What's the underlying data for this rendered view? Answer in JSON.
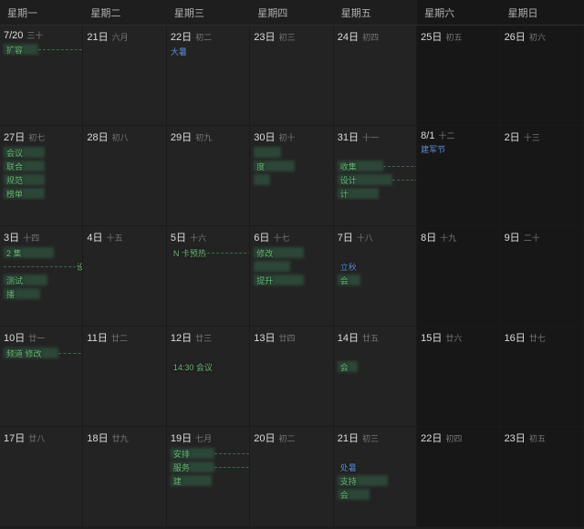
{
  "colors": {
    "bg": "#1e1e1e",
    "cell": "#232323",
    "weekend": "#171717",
    "grid": "#1a1a1a",
    "text": "#cccccc",
    "lunar": "#777777",
    "holiday": "#5a8dd6",
    "event_bar": "#2e4a3a",
    "event_text": "#6db87a",
    "event_dash": "#3a6b4a"
  },
  "headers": [
    "星期一",
    "星期二",
    "星期三",
    "星期四",
    "星期五",
    "星期六",
    "星期日"
  ],
  "weeks": [
    {
      "days": [
        {
          "num": "7/20",
          "lunar": "三十",
          "events": [
            {
              "label": "扩容",
              "bar": 38,
              "dash_from": 38,
              "dash_to": 275
            }
          ]
        },
        {
          "num": "21日",
          "lunar": "六月",
          "events": []
        },
        {
          "num": "22日",
          "lunar": "初二",
          "solar": "大暑",
          "events": []
        },
        {
          "num": "23日",
          "lunar": "初三",
          "events": []
        },
        {
          "num": "24日",
          "lunar": "初四",
          "events": []
        },
        {
          "num": "25日",
          "lunar": "初五",
          "wknd": true,
          "events": []
        },
        {
          "num": "26日",
          "lunar": "初六",
          "wknd": true,
          "events": []
        }
      ]
    },
    {
      "days": [
        {
          "num": "27日",
          "lunar": "初七",
          "events": [
            {
              "label": "会议",
              "bar": 45
            },
            {
              "label": "联合",
              "bar": 45
            },
            {
              "label": "规范",
              "bar": 45
            },
            {
              "label": "榜单",
              "bar": 45
            }
          ]
        },
        {
          "num": "28日",
          "lunar": "初八",
          "events": []
        },
        {
          "num": "29日",
          "lunar": "初九",
          "events": []
        },
        {
          "num": "30日",
          "lunar": "初十",
          "events": [
            {
              "label": "",
              "bar": 30
            },
            {
              "label": "度",
              "bar": 45
            },
            {
              "label": "",
              "bar": 18
            }
          ]
        },
        {
          "num": "31日",
          "lunar": "十一",
          "events": [
            {
              "label": "",
              "bar": 0
            },
            {
              "label": "收集",
              "bar": 50,
              "dash_from": 50,
              "dash_to": 275
            },
            {
              "label": "设计",
              "bar": 60,
              "dash_from": 60,
              "dash_to": 275
            },
            {
              "label": "计",
              "bar": 45
            }
          ]
        },
        {
          "num": "8/1",
          "lunar": "十二",
          "wknd": true,
          "solar": "建军节",
          "events": []
        },
        {
          "num": "2日",
          "lunar": "十三",
          "wknd": true,
          "events": []
        }
      ]
    },
    {
      "days": [
        {
          "num": "3日",
          "lunar": "十四",
          "events": [
            {
              "label": "集",
              "bar": 55,
              "pre": "2"
            },
            {
              "label": "设计",
              "bar": 0,
              "dash_from": 0,
              "dash_to": 120,
              "label_off": 80
            },
            {
              "label": "测试",
              "bar": 48
            },
            {
              "label": "播",
              "bar": 40
            }
          ]
        },
        {
          "num": "4日",
          "lunar": "十五",
          "events": []
        },
        {
          "num": "5日",
          "lunar": "十六",
          "events": [
            {
              "label": "卡预热",
              "bar": 0,
              "pre": "N",
              "dash_from": 40,
              "dash_to": 184
            }
          ]
        },
        {
          "num": "6日",
          "lunar": "十七",
          "events": [
            {
              "label": "修改",
              "bar": 55
            },
            {
              "label": "",
              "bar": 40
            },
            {
              "label": "提升",
              "bar": 55
            }
          ]
        },
        {
          "num": "7日",
          "lunar": "十八",
          "events": [
            {
              "label": "",
              "bar": 0
            },
            {
              "label": "立秋",
              "bar": 0,
              "color": "#5a8dd6"
            },
            {
              "label": "会",
              "bar": 25
            }
          ]
        },
        {
          "num": "8日",
          "lunar": "十九",
          "wknd": true,
          "events": []
        },
        {
          "num": "9日",
          "lunar": "二十",
          "wknd": true,
          "events": []
        }
      ]
    },
    {
      "days": [
        {
          "num": "10日",
          "lunar": "廿一",
          "events": [
            {
              "label": "修改",
              "bar": 60,
              "pre": "频道",
              "dash_from": 60,
              "dash_to": 90
            }
          ]
        },
        {
          "num": "11日",
          "lunar": "廿二",
          "events": []
        },
        {
          "num": "12日",
          "lunar": "廿三",
          "events": [
            {
              "label": "",
              "bar": 0
            },
            {
              "label": "会议",
              "bar": 0,
              "pre": "14:30"
            }
          ]
        },
        {
          "num": "13日",
          "lunar": "廿四",
          "events": []
        },
        {
          "num": "14日",
          "lunar": "廿五",
          "events": [
            {
              "label": "",
              "bar": 0
            },
            {
              "label": "会",
              "bar": 22
            }
          ]
        },
        {
          "num": "15日",
          "lunar": "廿六",
          "wknd": true,
          "events": []
        },
        {
          "num": "16日",
          "lunar": "廿七",
          "wknd": true,
          "events": []
        }
      ]
    },
    {
      "days": [
        {
          "num": "17日",
          "lunar": "廿八",
          "events": []
        },
        {
          "num": "18日",
          "lunar": "廿九",
          "events": []
        },
        {
          "num": "19日",
          "lunar": "七月",
          "events": [
            {
              "label": "安排",
              "bar": 48,
              "dash_from": 48,
              "dash_to": 368
            },
            {
              "label": "服务",
              "bar": 48,
              "dash_from": 48,
              "dash_to": 184
            },
            {
              "label": "建",
              "bar": 45
            }
          ]
        },
        {
          "num": "20日",
          "lunar": "初二",
          "events": []
        },
        {
          "num": "21日",
          "lunar": "初三",
          "events": [
            {
              "label": "",
              "bar": 0
            },
            {
              "label": "处暑",
              "bar": 0,
              "color": "#5a8dd6"
            },
            {
              "label": "支持",
              "bar": 55
            },
            {
              "label": "会",
              "bar": 35
            }
          ]
        },
        {
          "num": "22日",
          "lunar": "初四",
          "wknd": true,
          "events": []
        },
        {
          "num": "23日",
          "lunar": "初五",
          "wknd": true,
          "events": []
        }
      ]
    }
  ]
}
